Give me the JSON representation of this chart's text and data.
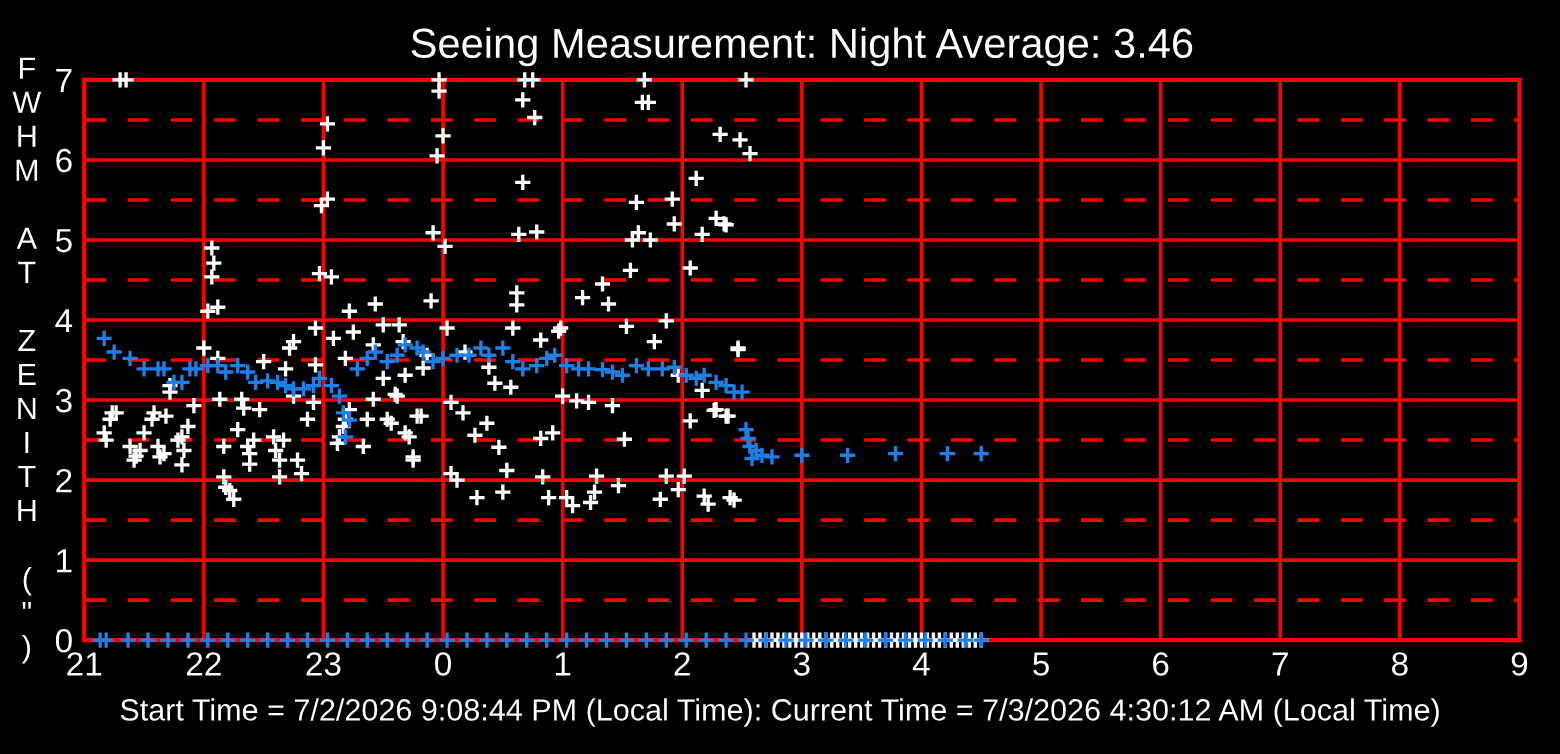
{
  "chart_data": {
    "type": "scatter",
    "title": "Seeing Measurement: Night Average: 3.46",
    "ylabel": "FWHM AT ZENITH (\")",
    "annotations": [
      "Start Time = 7/2/2026 9:08:44 PM (Local Time): Current Time = 7/3/2026 4:30:12 AM (Local Time)"
    ],
    "xlim": [
      "2026-07-02T21:00",
      "2026-07-03T09:00"
    ],
    "ylim": [
      0,
      7
    ],
    "xticks": [
      {
        "value": "2026-07-02T21:00",
        "label": "21"
      },
      {
        "value": "2026-07-02T22:00",
        "label": "22"
      },
      {
        "value": "2026-07-02T23:00",
        "label": "23"
      },
      {
        "value": "2026-07-03T00:00",
        "label": "0"
      },
      {
        "value": "2026-07-03T01:00",
        "label": "1"
      },
      {
        "value": "2026-07-03T02:00",
        "label": "2"
      },
      {
        "value": "2026-07-03T03:00",
        "label": "3"
      },
      {
        "value": "2026-07-03T04:00",
        "label": "4"
      },
      {
        "value": "2026-07-03T05:00",
        "label": "5"
      },
      {
        "value": "2026-07-03T06:00",
        "label": "6"
      },
      {
        "value": "2026-07-03T07:00",
        "label": "7"
      },
      {
        "value": "2026-07-03T08:00",
        "label": "8"
      },
      {
        "value": "2026-07-03T09:00",
        "label": "9"
      }
    ],
    "yticks": [
      0,
      1,
      2,
      3,
      4,
      5,
      6,
      7
    ],
    "grid": true,
    "marker": "cross",
    "ref_lines": [
      {
        "axis": "y",
        "value": 0.5,
        "color": "#ff0000",
        "line_style": "dashed"
      },
      {
        "axis": "y",
        "value": 1.5,
        "color": "#ff0000",
        "line_style": "dashed"
      },
      {
        "axis": "y",
        "value": 2.5,
        "color": "#ff0000",
        "line_style": "dashed"
      },
      {
        "axis": "y",
        "value": 3.5,
        "color": "#ff0000",
        "line_style": "dashed"
      },
      {
        "axis": "y",
        "value": 4.5,
        "color": "#ff0000",
        "line_style": "dashed"
      },
      {
        "axis": "y",
        "value": 5.5,
        "color": "#ff0000",
        "line_style": "dashed"
      },
      {
        "axis": "y",
        "value": 6.5,
        "color": "#ff0000",
        "line_style": "dashed"
      }
    ],
    "series": [
      {
        "color": "#ffffff",
        "x": [
          "2026-07-02T21:18",
          "2026-07-02T21:21",
          "2026-07-02T21:10",
          "2026-07-02T21:11",
          "2026-07-02T21:13",
          "2026-07-02T21:14",
          "2026-07-02T21:16",
          "2026-07-02T21:23",
          "2026-07-02T21:25",
          "2026-07-02T21:26",
          "2026-07-02T21:28",
          "2026-07-02T21:34",
          "2026-07-02T21:35",
          "2026-07-02T21:30",
          "2026-07-02T21:37",
          "2026-07-02T21:38",
          "2026-07-02T21:40",
          "2026-07-02T21:41",
          "2026-07-02T21:43",
          "2026-07-02T21:47",
          "2026-07-02T21:49",
          "2026-07-02T21:50",
          "2026-07-02T21:49",
          "2026-07-02T21:52",
          "2026-07-02T21:55",
          "2026-07-02T21:43",
          "2026-07-02T22:00",
          "2026-07-02T22:02",
          "2026-07-02T22:07",
          "2026-07-02T22:04",
          "2026-07-02T22:05",
          "2026-07-02T22:04",
          "2026-07-02T22:07",
          "2026-07-02T22:08",
          "2026-07-02T22:10",
          "2026-07-02T22:10",
          "2026-07-02T22:11",
          "2026-07-02T22:13",
          "2026-07-02T22:15",
          "2026-07-02T22:17",
          "2026-07-02T22:19",
          "2026-07-02T22:20",
          "2026-07-02T22:22",
          "2026-07-02T22:23",
          "2026-07-02T22:25",
          "2026-07-02T22:23",
          "2026-07-02T22:28",
          "2026-07-02T22:30",
          "2026-07-02T22:35",
          "2026-07-02T22:36",
          "2026-07-02T22:38",
          "2026-07-02T22:38",
          "2026-07-02T22:40",
          "2026-07-02T22:41",
          "2026-07-02T22:43",
          "2026-07-02T22:45",
          "2026-07-02T22:45",
          "2026-07-02T22:47",
          "2026-07-02T22:49",
          "2026-07-02T22:52",
          "2026-07-02T22:55",
          "2026-07-02T22:56",
          "2026-07-02T22:56",
          "2026-07-02T22:58",
          "2026-07-02T22:59",
          "2026-07-02T23:02",
          "2026-07-02T23:00",
          "2026-07-02T23:02",
          "2026-07-02T23:04",
          "2026-07-02T23:05",
          "2026-07-02T23:07",
          "2026-07-02T23:08",
          "2026-07-02T23:10",
          "2026-07-02T23:11",
          "2026-07-02T23:13",
          "2026-07-02T23:11",
          "2026-07-02T23:13",
          "2026-07-02T23:15",
          "2026-07-02T23:20",
          "2026-07-02T23:22",
          "2026-07-02T23:25",
          "2026-07-02T23:25",
          "2026-07-02T23:26",
          "2026-07-02T23:30",
          "2026-07-02T23:30",
          "2026-07-02T23:32",
          "2026-07-02T23:37",
          "2026-07-02T23:38",
          "2026-07-02T23:40",
          "2026-07-02T23:41",
          "2026-07-02T23:41",
          "2026-07-02T23:45",
          "2026-07-02T23:47",
          "2026-07-02T23:58",
          "2026-07-02T23:58",
          "2026-07-03T00:00",
          "2026-07-02T23:57",
          "2026-07-02T23:55",
          "2026-07-03T00:01",
          "2026-07-02T23:54",
          "2026-07-03T00:02",
          "2026-07-02T23:52",
          "2026-07-02T23:50",
          "2026-07-02T23:36",
          "2026-07-03T00:04",
          "2026-07-03T00:10",
          "2026-07-02T23:49",
          "2026-07-02T23:34",
          "2026-07-02T23:43",
          "2026-07-02T23:45",
          "2026-07-03T00:04",
          "2026-07-03T00:07",
          "2026-07-03T00:16",
          "2026-07-03T00:22",
          "2026-07-03T00:17",
          "2026-07-03T00:30",
          "2026-07-03T00:28",
          "2026-07-03T00:32",
          "2026-07-03T00:34",
          "2026-07-03T00:26",
          "2026-07-03T00:23",
          "2026-07-03T00:11",
          "2026-07-03T00:35",
          "2026-07-03T00:37",
          "2026-07-03T00:37",
          "2026-07-03T00:38",
          "2026-07-03T00:47",
          "2026-07-03T00:40",
          "2026-07-03T00:40",
          "2026-07-03T00:46",
          "2026-07-03T00:41",
          "2026-07-03T00:45",
          "2026-07-03T00:49",
          "2026-07-03T00:49",
          "2026-07-03T00:55",
          "2026-07-03T00:50",
          "2026-07-03T00:53",
          "2026-07-03T00:58",
          "2026-07-03T00:59",
          "2026-07-03T01:00",
          "2026-07-03T01:02",
          "2026-07-03T01:05",
          "2026-07-03T01:07",
          "2026-07-03T01:13",
          "2026-07-03T01:10",
          "2026-07-03T01:14",
          "2026-07-03T01:16",
          "2026-07-03T01:17",
          "2026-07-03T01:20",
          "2026-07-03T01:23",
          "2026-07-03T01:25",
          "2026-07-03T01:28",
          "2026-07-03T01:31",
          "2026-07-03T01:32",
          "2026-07-03T01:34",
          "2026-07-03T01:35",
          "2026-07-03T01:38",
          "2026-07-03T01:37",
          "2026-07-03T01:41",
          "2026-07-03T01:40",
          "2026-07-03T01:43",
          "2026-07-03T01:44",
          "2026-07-03T01:46",
          "2026-07-03T01:49",
          "2026-07-03T01:52",
          "2026-07-03T01:52",
          "2026-07-03T01:55",
          "2026-07-03T01:56",
          "2026-07-03T01:58",
          "2026-07-03T01:58",
          "2026-07-03T02:01",
          "2026-07-03T02:04",
          "2026-07-03T02:04",
          "2026-07-03T02:07",
          "2026-07-03T02:10",
          "2026-07-03T02:17",
          "2026-07-03T02:21",
          "2026-07-03T02:17",
          "2026-07-03T02:23",
          "2026-07-03T02:19",
          "2026-07-03T02:24",
          "2026-07-03T02:26",
          "2026-07-03T02:28",
          "2026-07-03T02:32",
          "2026-07-03T02:29",
          "2026-07-03T02:34",
          "2026-07-03T02:22",
          "2026-07-03T02:28",
          "2026-07-03T02:10",
          "2026-07-03T02:16",
          "2026-07-03T02:22",
          "2026-07-03T02:11",
          "2026-07-03T02:13"
        ],
        "values": [
          7,
          7,
          2.59,
          2.5,
          2.76,
          2.84,
          2.84,
          2.42,
          2.25,
          2.3,
          2.37,
          2.76,
          2.84,
          2.59,
          2.42,
          2.29,
          2.33,
          2.8,
          3.18,
          2.5,
          2.54,
          2.37,
          2.19,
          2.67,
          2.93,
          3.1,
          3.65,
          4.11,
          4.16,
          4.54,
          4.71,
          4.9,
          3.52,
          3.01,
          2.42,
          2.04,
          1.91,
          1.87,
          1.76,
          2.63,
          3.01,
          2.9,
          2.42,
          2.33,
          2.5,
          2.2,
          2.88,
          3.48,
          2.54,
          2.37,
          2.25,
          2.04,
          2.5,
          3.39,
          3.65,
          3.73,
          3.05,
          2.25,
          2.08,
          2.76,
          2.97,
          3.44,
          3.9,
          4.58,
          5.43,
          5.51,
          6.15,
          6.45,
          4.54,
          3.77,
          2.46,
          2.54,
          2.67,
          2.76,
          2.88,
          3.52,
          4.11,
          3.85,
          2.42,
          2.76,
          3.01,
          3.69,
          4.2,
          3.27,
          3.94,
          2.76,
          3.05,
          3.94,
          3.73,
          3.31,
          2.59,
          2.29,
          2.8,
          7,
          6.86,
          6.3,
          6.05,
          5.09,
          4.92,
          4.24,
          3.9,
          3.56,
          3.4,
          3.07,
          2.97,
          2.84,
          2.8,
          2.71,
          2.54,
          2.25,
          2.08,
          2.0,
          2.56,
          2.71,
          1.78,
          1.85,
          2.41,
          2.12,
          3.16,
          3.21,
          3.41,
          3.6,
          3.9,
          4.19,
          4.34,
          5.07,
          5.1,
          5.72,
          6.75,
          6.53,
          7,
          7,
          3.75,
          2.52,
          2.59,
          2.04,
          1.78,
          3.86,
          3.9,
          3.05,
          1.78,
          1.68,
          2.99,
          2.97,
          4.28,
          1.72,
          1.85,
          2.05,
          4.45,
          4.2,
          2.93,
          1.93,
          2.51,
          3.92,
          4.62,
          5.0,
          5.09,
          5.47,
          7,
          6.72,
          6.72,
          5.0,
          3.73,
          1.76,
          2.05,
          3.99,
          5.51,
          5.2,
          3.31,
          1.88,
          2.05,
          2.74,
          4.65,
          5.77,
          5.07,
          5.27,
          5.2,
          2.88,
          2.8,
          6.32,
          1.78,
          1.75,
          3.65,
          7,
          6.25,
          6.08,
          5.19,
          3.63,
          3.12,
          2.87,
          2.8,
          1.8,
          1.7
        ]
      },
      {
        "color": "#1e7fe6",
        "x": [
          "2026-07-02T21:10",
          "2026-07-02T21:15",
          "2026-07-02T21:23",
          "2026-07-02T21:30",
          "2026-07-02T21:37",
          "2026-07-02T21:40",
          "2026-07-02T21:45",
          "2026-07-02T21:49",
          "2026-07-02T21:53",
          "2026-07-02T21:56",
          "2026-07-02T22:02",
          "2026-07-02T22:07",
          "2026-07-02T22:11",
          "2026-07-02T22:17",
          "2026-07-02T22:22",
          "2026-07-02T22:26",
          "2026-07-02T22:32",
          "2026-07-02T22:37",
          "2026-07-02T22:41",
          "2026-07-02T22:45",
          "2026-07-02T22:50",
          "2026-07-02T22:55",
          "2026-07-02T22:58",
          "2026-07-02T23:04",
          "2026-07-02T23:08",
          "2026-07-02T23:10",
          "2026-07-02T23:11",
          "2026-07-02T23:13",
          "2026-07-02T23:17",
          "2026-07-02T23:22",
          "2026-07-02T23:26",
          "2026-07-02T23:32",
          "2026-07-02T23:37",
          "2026-07-02T23:41",
          "2026-07-02T23:47",
          "2026-07-02T23:50",
          "2026-07-02T23:55",
          "2026-07-03T00:00",
          "2026-07-03T00:07",
          "2026-07-03T00:13",
          "2026-07-03T00:19",
          "2026-07-03T00:23",
          "2026-07-03T00:30",
          "2026-07-03T00:35",
          "2026-07-03T00:40",
          "2026-07-03T00:47",
          "2026-07-03T00:52",
          "2026-07-03T00:56",
          "2026-07-03T01:02",
          "2026-07-03T01:08",
          "2026-07-03T01:13",
          "2026-07-03T01:20",
          "2026-07-03T01:25",
          "2026-07-03T01:30",
          "2026-07-03T01:37",
          "2026-07-03T01:43",
          "2026-07-03T01:50",
          "2026-07-03T01:56",
          "2026-07-03T02:02",
          "2026-07-03T02:07",
          "2026-07-03T02:11",
          "2026-07-03T02:17",
          "2026-07-03T02:22",
          "2026-07-03T02:26",
          "2026-07-03T02:30",
          "2026-07-03T02:32",
          "2026-07-03T02:33",
          "2026-07-03T02:34",
          "2026-07-03T02:35",
          "2026-07-03T02:37",
          "2026-07-03T02:40",
          "2026-07-03T02:45",
          "2026-07-03T03:00",
          "2026-07-03T03:23",
          "2026-07-03T03:47",
          "2026-07-03T04:13",
          "2026-07-03T04:30"
        ],
        "values": [
          3.77,
          3.6,
          3.52,
          3.39,
          3.39,
          3.39,
          3.22,
          3.22,
          3.39,
          3.39,
          3.43,
          3.43,
          3.35,
          3.43,
          3.35,
          3.22,
          3.24,
          3.22,
          3.18,
          3.14,
          3.14,
          3.18,
          3.27,
          3.18,
          3.05,
          2.84,
          2.54,
          2.75,
          3.39,
          3.52,
          3.6,
          3.48,
          3.56,
          3.69,
          3.65,
          3.6,
          3.48,
          3.52,
          3.56,
          3.56,
          3.65,
          3.56,
          3.65,
          3.48,
          3.39,
          3.43,
          3.52,
          3.56,
          3.43,
          3.39,
          3.39,
          3.38,
          3.35,
          3.31,
          3.43,
          3.39,
          3.39,
          3.41,
          3.31,
          3.27,
          3.31,
          3.22,
          3.18,
          3.1,
          3.1,
          2.63,
          2.52,
          2.42,
          2.27,
          2.37,
          2.31,
          2.29,
          2.31,
          2.31,
          2.33,
          2.33,
          2.33
        ]
      },
      {
        "color": "#ffffff",
        "x": [
          "2026-07-03T02:36",
          "2026-07-03T02:39",
          "2026-07-03T02:42",
          "2026-07-03T02:45",
          "2026-07-03T02:48",
          "2026-07-03T02:51",
          "2026-07-03T02:54",
          "2026-07-03T02:57",
          "2026-07-03T03:00",
          "2026-07-03T03:03",
          "2026-07-03T03:06",
          "2026-07-03T03:09",
          "2026-07-03T03:12",
          "2026-07-03T03:15",
          "2026-07-03T03:18",
          "2026-07-03T03:21",
          "2026-07-03T03:24",
          "2026-07-03T03:27",
          "2026-07-03T03:30",
          "2026-07-03T03:33",
          "2026-07-03T03:36",
          "2026-07-03T03:39",
          "2026-07-03T03:42",
          "2026-07-03T03:45",
          "2026-07-03T03:48",
          "2026-07-03T03:51",
          "2026-07-03T03:54",
          "2026-07-03T03:57",
          "2026-07-03T04:00",
          "2026-07-03T04:03",
          "2026-07-03T04:06",
          "2026-07-03T04:09",
          "2026-07-03T04:12",
          "2026-07-03T04:15",
          "2026-07-03T04:18",
          "2026-07-03T04:21",
          "2026-07-03T04:24",
          "2026-07-03T04:27",
          "2026-07-03T04:30"
        ],
        "values": [
          0,
          0,
          0,
          0,
          0,
          0,
          0,
          0,
          0,
          0,
          0,
          0,
          0,
          0,
          0,
          0,
          0,
          0,
          0,
          0,
          0,
          0,
          0,
          0,
          0,
          0,
          0,
          0,
          0,
          0,
          0,
          0,
          0,
          0,
          0,
          0,
          0,
          0,
          0
        ]
      },
      {
        "color": "#1e7fe6",
        "x": [
          "2026-07-02T21:08",
          "2026-07-02T21:11",
          "2026-07-02T21:22",
          "2026-07-02T21:32",
          "2026-07-02T21:42",
          "2026-07-02T21:52",
          "2026-07-02T22:02",
          "2026-07-02T22:12",
          "2026-07-02T22:22",
          "2026-07-02T22:32",
          "2026-07-02T22:42",
          "2026-07-02T22:52",
          "2026-07-02T23:02",
          "2026-07-02T23:12",
          "2026-07-02T23:22",
          "2026-07-02T23:32",
          "2026-07-02T23:42",
          "2026-07-02T23:52",
          "2026-07-03T00:02",
          "2026-07-03T00:12",
          "2026-07-03T00:22",
          "2026-07-03T00:32",
          "2026-07-03T00:42",
          "2026-07-03T00:52",
          "2026-07-03T01:02",
          "2026-07-03T01:12",
          "2026-07-03T01:22",
          "2026-07-03T01:32",
          "2026-07-03T01:42",
          "2026-07-03T01:52",
          "2026-07-03T02:02",
          "2026-07-03T02:12",
          "2026-07-03T02:22",
          "2026-07-03T02:32",
          "2026-07-03T02:42",
          "2026-07-03T02:52",
          "2026-07-03T03:02",
          "2026-07-03T03:12",
          "2026-07-03T03:22",
          "2026-07-03T03:32",
          "2026-07-03T03:42",
          "2026-07-03T03:52",
          "2026-07-03T04:02",
          "2026-07-03T04:12",
          "2026-07-03T04:22",
          "2026-07-03T04:30"
        ],
        "values": [
          0,
          0,
          0,
          0,
          0,
          0,
          0,
          0,
          0,
          0,
          0,
          0,
          0,
          0,
          0,
          0,
          0,
          0,
          0,
          0,
          0,
          0,
          0,
          0,
          0,
          0,
          0,
          0,
          0,
          0,
          0,
          0,
          0,
          0,
          0,
          0,
          0,
          0,
          0,
          0,
          0,
          0,
          0,
          0,
          0,
          0
        ]
      }
    ]
  }
}
